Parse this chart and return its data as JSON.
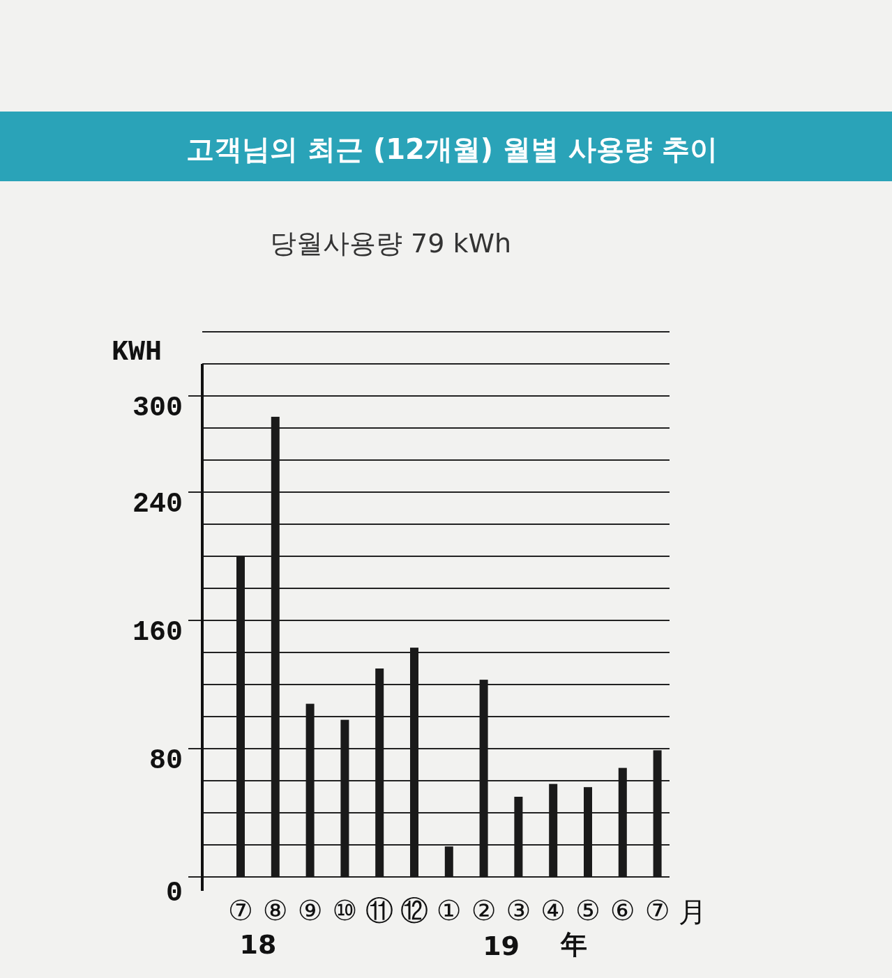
{
  "chart_data": {
    "type": "bar",
    "title": "고객님의 최근 (12개월) 월별 사용량 추이",
    "subtitle": "당월사용량 79 kWh",
    "ylabel": "KWH",
    "xlabel": "月",
    "categories": [
      "⑦",
      "⑧",
      "⑨",
      "⑩",
      "⑪",
      "⑫",
      "①",
      "②",
      "③",
      "④",
      "⑤",
      "⑥",
      "⑦"
    ],
    "values": [
      200,
      287,
      108,
      98,
      130,
      143,
      19,
      123,
      50,
      58,
      56,
      68,
      79
    ],
    "color": "#1a1a1a",
    "ylim": [
      0,
      340
    ],
    "yticks": [
      0,
      {
        "value": 20,
        "label": null
      },
      {
        "value": 40,
        "label": null
      },
      {
        "value": 60,
        "label": null
      },
      80,
      {
        "value": 100,
        "label": null
      },
      {
        "value": 120,
        "label": null
      },
      {
        "value": 140,
        "label": null
      },
      160,
      {
        "value": 180,
        "label": null
      },
      {
        "value": 200,
        "label": null
      },
      {
        "value": 220,
        "label": null
      },
      240,
      {
        "value": 260,
        "label": null
      },
      {
        "value": 280,
        "label": null
      },
      300,
      {
        "value": 320,
        "label": null
      },
      {
        "value": 340,
        "label": null
      }
    ],
    "grid": "y",
    "annotations": [
      "18",
      "19",
      "年"
    ]
  }
}
